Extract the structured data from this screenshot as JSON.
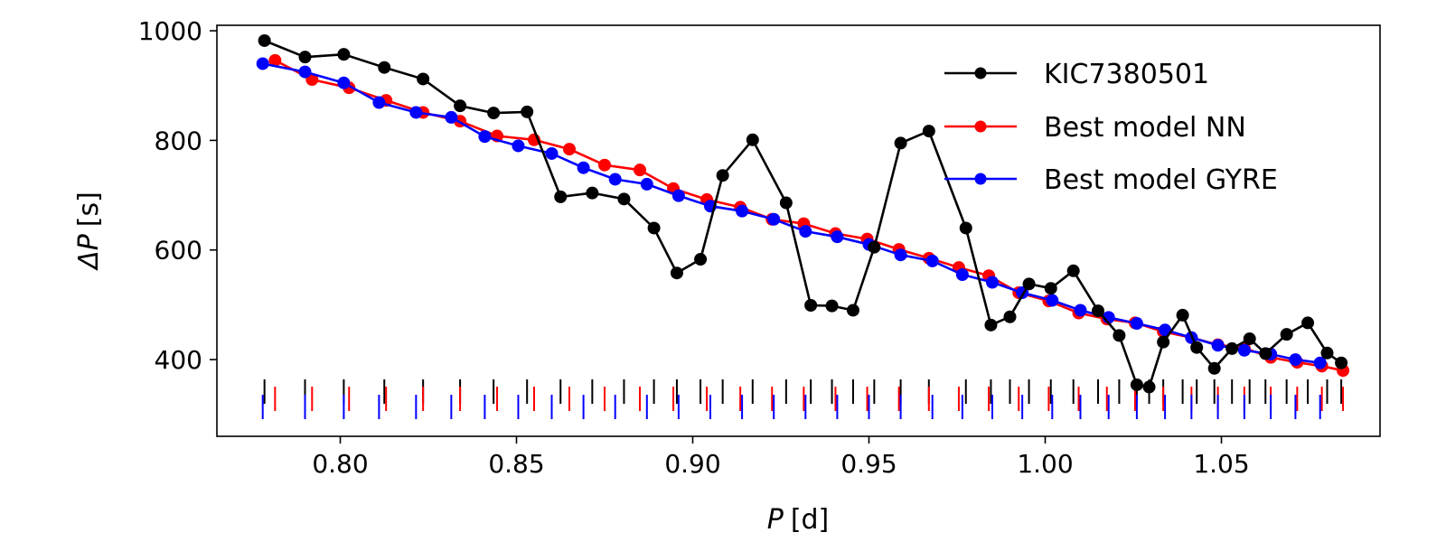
{
  "chart_data": {
    "type": "line",
    "xlabel_symbol": "P",
    "xlabel_unit": "[d]",
    "ylabel_symbol": "ΔP",
    "ylabel_unit": "[s]",
    "xlim": [
      0.765,
      1.095
    ],
    "ylim": [
      260,
      1010
    ],
    "xticks": [
      0.8,
      0.85,
      0.9,
      0.95,
      1.0,
      1.05
    ],
    "xtick_labels": [
      "0.80",
      "0.85",
      "0.90",
      "0.95",
      "1.00",
      "1.05"
    ],
    "yticks": [
      400,
      600,
      800,
      1000
    ],
    "ytick_labels": [
      "400",
      "600",
      "800",
      "1000"
    ],
    "grid": false,
    "legend_position": "top-right",
    "series": [
      {
        "name": "KIC7380501",
        "color": "#000000",
        "x": [
          0.7785,
          0.79,
          0.801,
          0.8125,
          0.8235,
          0.834,
          0.8435,
          0.853,
          0.8625,
          0.8715,
          0.8805,
          0.889,
          0.8955,
          0.9022,
          0.9085,
          0.917,
          0.9265,
          0.9335,
          0.9395,
          0.9455,
          0.9515,
          0.959,
          0.967,
          0.9775,
          0.9846,
          0.99,
          0.9954,
          1.0016,
          1.008,
          1.015,
          1.021,
          1.026,
          1.0295,
          1.0335,
          1.039,
          1.043,
          1.048,
          1.053,
          1.058,
          1.0625,
          1.0685,
          1.0745,
          1.08,
          1.084
        ],
        "y": [
          982,
          952,
          957,
          933,
          912,
          863,
          850,
          852,
          697,
          704,
          693,
          640,
          558,
          583,
          736,
          801,
          686,
          499,
          498,
          490,
          605,
          795,
          817,
          640,
          463,
          478,
          538,
          530,
          562,
          489,
          444,
          354,
          350,
          432,
          481,
          422,
          384,
          420,
          438,
          411,
          446,
          467,
          412,
          394
        ]
      },
      {
        "name": "Best model NN",
        "color": "#ff0000",
        "x": [
          0.7815,
          0.792,
          0.8025,
          0.813,
          0.8235,
          0.834,
          0.8445,
          0.855,
          0.865,
          0.875,
          0.885,
          0.8945,
          0.904,
          0.9135,
          0.9225,
          0.9315,
          0.9405,
          0.9495,
          0.9585,
          0.967,
          0.9755,
          0.984,
          0.9925,
          1.001,
          1.0095,
          1.0175,
          1.0255,
          1.0335,
          1.0415,
          1.049,
          1.0565,
          1.064,
          1.0715,
          1.0785,
          1.0845
        ],
        "y": [
          946,
          911,
          896,
          873,
          851,
          835,
          808,
          801,
          784,
          755,
          746,
          712,
          692,
          678,
          656,
          648,
          630,
          620,
          601,
          585,
          568,
          553,
          522,
          507,
          485,
          474,
          467,
          451,
          440,
          427,
          421,
          404,
          395,
          388,
          380
        ]
      },
      {
        "name": "Best model GYRE",
        "color": "#0000ff",
        "x": [
          0.778,
          0.79,
          0.801,
          0.811,
          0.8215,
          0.8315,
          0.841,
          0.8505,
          0.86,
          0.869,
          0.878,
          0.887,
          0.896,
          0.905,
          0.914,
          0.923,
          0.932,
          0.941,
          0.95,
          0.959,
          0.968,
          0.9765,
          0.985,
          0.9935,
          1.002,
          1.01,
          1.018,
          1.026,
          1.034,
          1.0415,
          1.049,
          1.0565,
          1.064,
          1.071,
          1.078
        ],
        "y": [
          940,
          925,
          905,
          869,
          851,
          842,
          807,
          790,
          776,
          750,
          729,
          720,
          699,
          680,
          671,
          656,
          634,
          624,
          610,
          591,
          580,
          555,
          541,
          522,
          508,
          490,
          477,
          466,
          454,
          440,
          426,
          417,
          410,
          400,
          394
        ]
      }
    ]
  }
}
